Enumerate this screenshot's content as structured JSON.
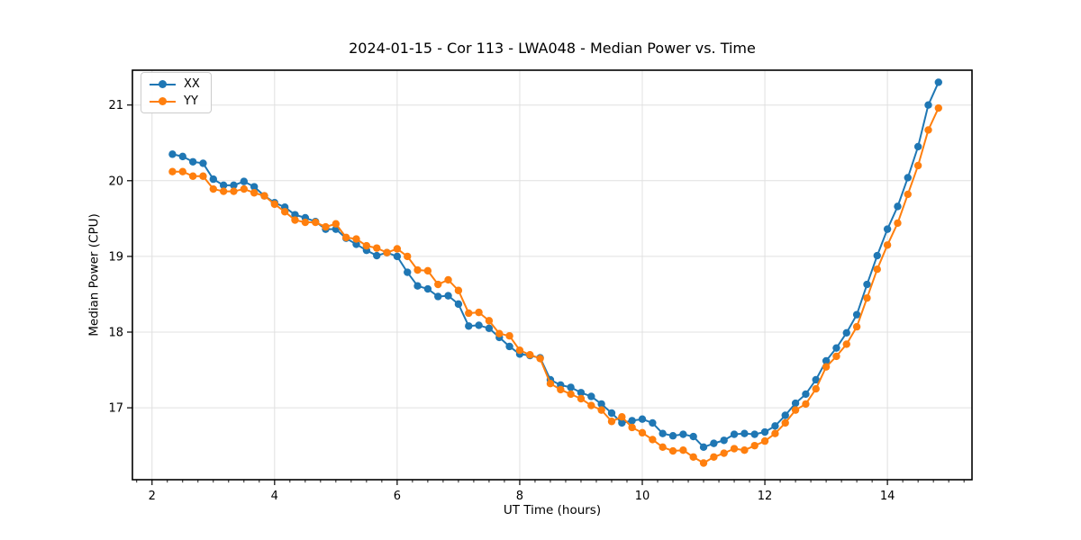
{
  "figure": {
    "background": "#ffffff",
    "text_color": "#000000",
    "grid_color": "#e0e0e0",
    "spine_color": "#000000"
  },
  "chart_data": {
    "type": "line",
    "title": "2024-01-15 - Cor 113 - LWA048 - Median Power vs. Time",
    "xlabel": "UT Time (hours)",
    "ylabel": "Median Power (CPU)",
    "xlim": [
      1.68,
      15.38
    ],
    "ylim": [
      16.05,
      21.46
    ],
    "xticks": [
      2,
      4,
      6,
      8,
      10,
      12,
      14
    ],
    "yticks": [
      17,
      18,
      19,
      20,
      21
    ],
    "minor_xtick_step": 0.25,
    "grid": true,
    "legend_position": "upper left",
    "marker": "circle",
    "x": [
      2.333,
      2.5,
      2.667,
      2.833,
      3.0,
      3.167,
      3.333,
      3.5,
      3.667,
      3.833,
      4.0,
      4.167,
      4.333,
      4.5,
      4.667,
      4.833,
      5.0,
      5.167,
      5.333,
      5.5,
      5.667,
      5.833,
      6.0,
      6.167,
      6.333,
      6.5,
      6.667,
      6.833,
      7.0,
      7.167,
      7.333,
      7.5,
      7.667,
      7.833,
      8.0,
      8.167,
      8.333,
      8.5,
      8.667,
      8.833,
      9.0,
      9.167,
      9.333,
      9.5,
      9.667,
      9.833,
      10.0,
      10.167,
      10.333,
      10.5,
      10.667,
      10.833,
      11.0,
      11.167,
      11.333,
      11.5,
      11.667,
      11.833,
      12.0,
      12.167,
      12.333,
      12.5,
      12.667,
      12.833,
      13.0,
      13.167,
      13.333,
      13.5,
      13.667,
      13.833,
      14.0,
      14.167,
      14.333,
      14.5,
      14.667,
      14.833
    ],
    "series": [
      {
        "name": "XX",
        "color": "#1f77b4",
        "values": [
          20.35,
          20.32,
          20.25,
          20.23,
          20.02,
          19.94,
          19.94,
          19.99,
          19.92,
          19.8,
          19.71,
          19.65,
          19.55,
          19.51,
          19.46,
          19.36,
          19.36,
          19.24,
          19.16,
          19.08,
          19.01,
          19.05,
          19.0,
          18.79,
          18.61,
          18.57,
          18.47,
          18.48,
          18.37,
          18.08,
          18.09,
          18.05,
          17.93,
          17.81,
          17.71,
          17.69,
          17.66,
          17.37,
          17.3,
          17.27,
          17.2,
          17.15,
          17.05,
          16.93,
          16.8,
          16.83,
          16.85,
          16.8,
          16.66,
          16.63,
          16.65,
          16.62,
          16.48,
          16.53,
          16.57,
          16.65,
          16.66,
          16.65,
          16.68,
          16.76,
          16.9,
          17.06,
          17.18,
          17.37,
          17.62,
          17.79,
          17.99,
          18.23,
          18.63,
          19.01,
          19.36,
          19.66,
          20.04,
          20.45,
          21.0,
          21.3
        ]
      },
      {
        "name": "YY",
        "color": "#ff7f0e",
        "values": [
          20.12,
          20.12,
          20.06,
          20.06,
          19.89,
          19.86,
          19.86,
          19.89,
          19.84,
          19.8,
          19.69,
          19.59,
          19.48,
          19.45,
          19.45,
          19.39,
          19.43,
          19.25,
          19.23,
          19.14,
          19.11,
          19.05,
          19.1,
          19.0,
          18.82,
          18.81,
          18.63,
          18.69,
          18.55,
          18.25,
          18.26,
          18.15,
          17.98,
          17.95,
          17.76,
          17.7,
          17.65,
          17.32,
          17.24,
          17.18,
          17.12,
          17.03,
          16.97,
          16.82,
          16.88,
          16.74,
          16.67,
          16.58,
          16.48,
          16.43,
          16.44,
          16.35,
          16.27,
          16.35,
          16.4,
          16.46,
          16.44,
          16.5,
          16.56,
          16.66,
          16.8,
          16.97,
          17.05,
          17.25,
          17.54,
          17.68,
          17.84,
          18.07,
          18.45,
          18.83,
          19.15,
          19.44,
          19.82,
          20.2,
          20.67,
          20.96
        ]
      }
    ]
  }
}
